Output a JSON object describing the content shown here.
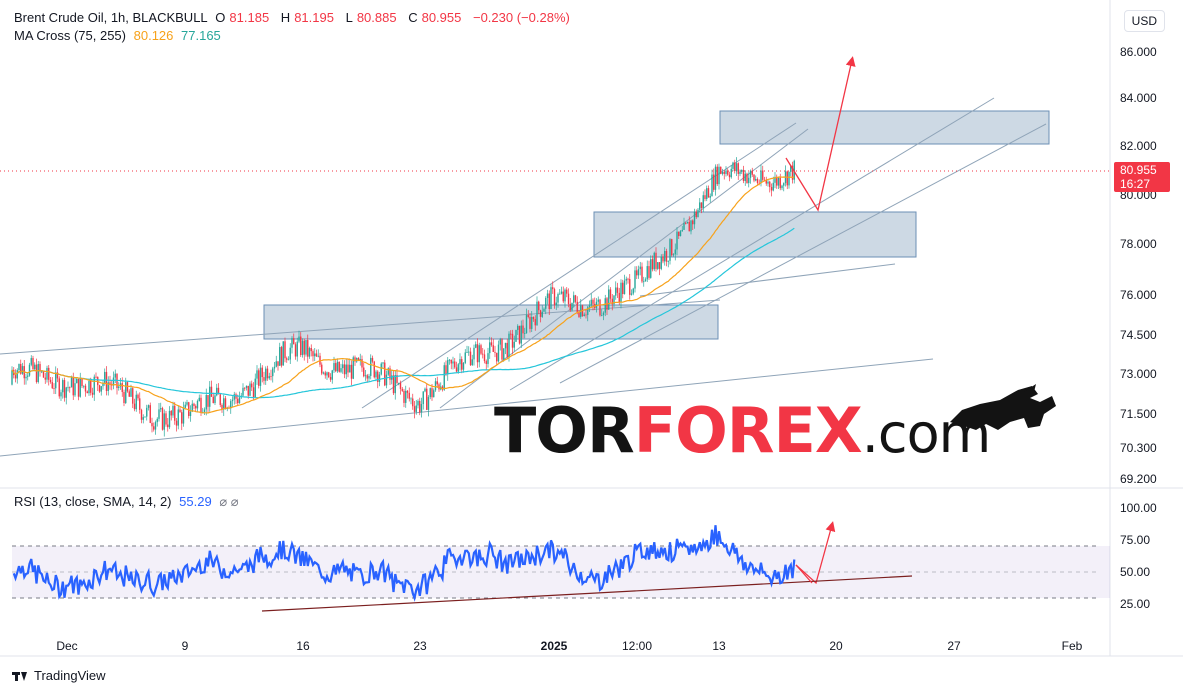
{
  "header": {
    "symbol": "Brent Crude Oil, 1h, BLACKBULL",
    "o_label": "O",
    "o_value": "81.185",
    "h_label": "H",
    "h_value": "81.195",
    "l_label": "L",
    "l_value": "80.885",
    "c_label": "C",
    "c_value": "80.955",
    "change": "−0.230 (−0.28%)",
    "ma_label": "MA Cross (75, 255)",
    "ma75_value": "80.126",
    "ma255_value": "77.165",
    "rsi_label": "RSI (13, close, SMA, 14, 2)",
    "rsi_value": "55.29",
    "rsi_icons": "⌀ ⌀"
  },
  "currency": "USD",
  "last_price": "80.955",
  "countdown": "16:27",
  "watermark": {
    "tor": "TOR",
    "forex": "FOREX",
    "com": ".com"
  },
  "branding": "TradingView",
  "colors": {
    "bull": "#26a69a",
    "bear": "#f23645",
    "ma75": "#f7a21b",
    "ma255": "#26c6da",
    "rsi": "#2962ff",
    "zone": "#b8c9d9",
    "annotation": "#f23645",
    "trend": "#8fa4b8"
  },
  "chart_data": [
    {
      "type": "candlestick",
      "y_ticks": [
        "86.000",
        "84.000",
        "82.000",
        "80.000",
        "78.000",
        "76.000",
        "74.500",
        "73.000",
        "71.500",
        "70.300",
        "69.200"
      ],
      "x_ticks": [
        "Dec",
        "9",
        "16",
        "23",
        "2025",
        "12:00",
        "13",
        "20",
        "27",
        "Feb"
      ],
      "ylim": [
        69.2,
        86.0
      ],
      "approx_close_path": [
        {
          "x": "Dec",
          "y": 72.9
        },
        {
          "x": "9",
          "y": 71.3
        },
        {
          "x": "16",
          "y": 73.9
        },
        {
          "x": "23",
          "y": 72.2
        },
        {
          "x": "2025",
          "y": 75.6
        },
        {
          "x": "12:00",
          "y": 76.2
        },
        {
          "x": "13",
          "y": 80.7
        },
        {
          "x": "current",
          "y": 80.955
        }
      ],
      "zones": [
        {
          "from": 74.5,
          "to": 75.6
        },
        {
          "from": 77.5,
          "to": 79.3
        },
        {
          "from": 82.0,
          "to": 83.4
        }
      ],
      "ma75_last": 80.126,
      "ma255_last": 77.165
    },
    {
      "type": "line",
      "name": "RSI",
      "y_ticks": [
        "100.00",
        "75.00",
        "50.00",
        "25.00"
      ],
      "ylim": [
        20,
        105
      ],
      "band": [
        30,
        70
      ],
      "last": 55.29
    }
  ]
}
